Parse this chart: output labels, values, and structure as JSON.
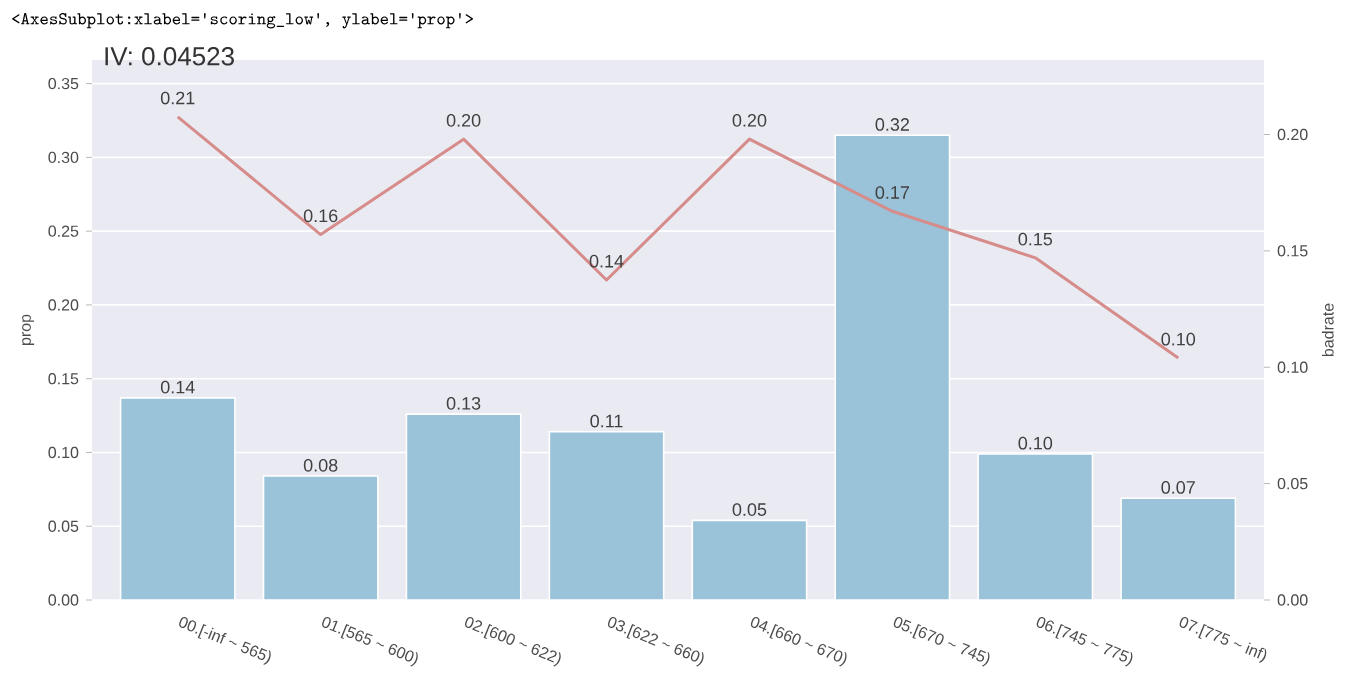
{
  "chart_data": {
    "type": "bar",
    "title": "IV: 0.04523",
    "annotations": [
      "<AxesSubplot:xlabel='scoring_low', ylabel='prop'>"
    ],
    "ylabel": "prop",
    "y2label": "badrate",
    "categories": [
      "00.[-inf ~ 565)",
      "01.[565 ~ 600)",
      "02.[600 ~ 622)",
      "03.[622 ~ 660)",
      "04.[660 ~ 670)",
      "05.[670 ~ 745)",
      "06.[745 ~ 775)",
      "07.[775 ~ inf)"
    ],
    "series": [
      {
        "color": "#9ac3da",
        "values": [
          0.137,
          0.084,
          0.126,
          0.114,
          0.054,
          0.315,
          0.099,
          0.069
        ],
        "value_labels": [
          "0.14",
          "0.08",
          "0.13",
          "0.11",
          "0.05",
          "0.32",
          "0.10",
          "0.07"
        ]
      },
      {
        "type": "line",
        "axis": "y2",
        "color": "#d58c8a",
        "values": [
          0.2076,
          0.157,
          0.198,
          0.1375,
          0.198,
          0.167,
          0.147,
          0.104
        ],
        "value_labels": [
          "0.21",
          "0.16",
          "0.20",
          "0.14",
          "0.20",
          "0.17",
          "0.15",
          "0.10"
        ]
      }
    ],
    "ylim": [
      0,
      0.366
    ],
    "yticks": [
      {
        "value": 0,
        "label": "0.00"
      },
      {
        "value": 0.05,
        "label": "0.05"
      },
      {
        "value": 0.1,
        "label": "0.10"
      },
      {
        "value": 0.15,
        "label": "0.15"
      },
      {
        "value": 0.2,
        "label": "0.20"
      },
      {
        "value": 0.25,
        "label": "0.25"
      },
      {
        "value": 0.3,
        "label": "0.30"
      },
      {
        "value": 0.35,
        "label": "0.35"
      }
    ],
    "y2lim": [
      0,
      0.232
    ],
    "y2ticks": [
      {
        "value": 0,
        "label": "0.00"
      },
      {
        "value": 0.05,
        "label": "0.05"
      },
      {
        "value": 0.1,
        "label": "0.10"
      },
      {
        "value": 0.15,
        "label": "0.15"
      },
      {
        "value": 0.2,
        "label": "0.20"
      }
    ],
    "grid": "y",
    "marker": "none"
  }
}
